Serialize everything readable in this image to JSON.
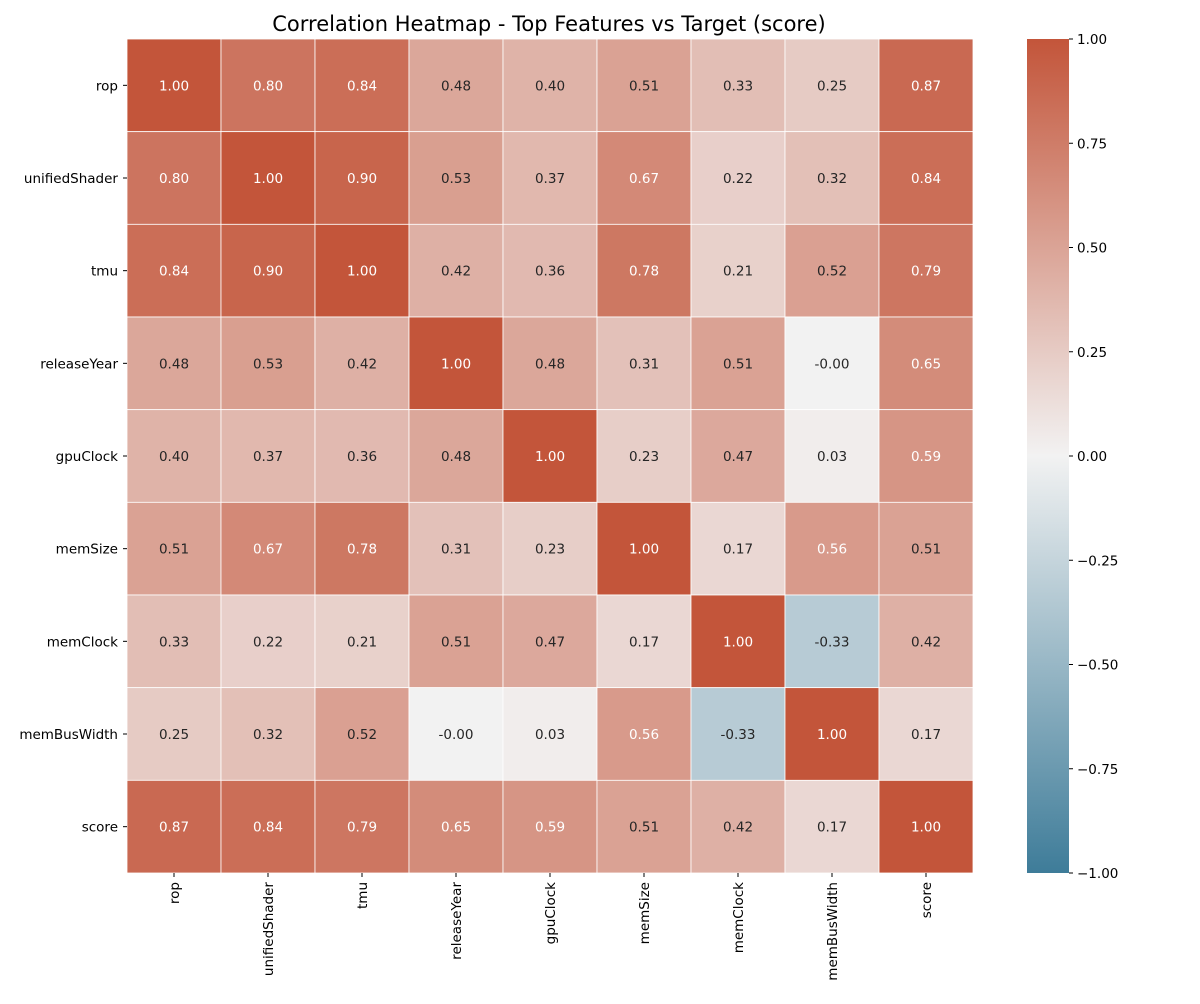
{
  "chart_data": {
    "type": "heatmap",
    "title": "Correlation Heatmap - Top Features vs Target (score)",
    "xlabel": "",
    "ylabel": "",
    "rows": [
      "rop",
      "unifiedShader",
      "tmu",
      "releaseYear",
      "gpuClock",
      "memSize",
      "memClock",
      "memBusWidth",
      "score"
    ],
    "columns": [
      "rop",
      "unifiedShader",
      "tmu",
      "releaseYear",
      "gpuClock",
      "memSize",
      "memClock",
      "memBusWidth",
      "score"
    ],
    "values": [
      [
        1.0,
        0.8,
        0.84,
        0.48,
        0.4,
        0.51,
        0.33,
        0.25,
        0.87
      ],
      [
        0.8,
        1.0,
        0.9,
        0.53,
        0.37,
        0.67,
        0.22,
        0.32,
        0.84
      ],
      [
        0.84,
        0.9,
        1.0,
        0.42,
        0.36,
        0.78,
        0.21,
        0.52,
        0.79
      ],
      [
        0.48,
        0.53,
        0.42,
        1.0,
        0.48,
        0.31,
        0.51,
        -0.0,
        0.65
      ],
      [
        0.4,
        0.37,
        0.36,
        0.48,
        1.0,
        0.23,
        0.47,
        0.03,
        0.59
      ],
      [
        0.51,
        0.67,
        0.78,
        0.31,
        0.23,
        1.0,
        0.17,
        0.56,
        0.51
      ],
      [
        0.33,
        0.22,
        0.21,
        0.51,
        0.47,
        0.17,
        1.0,
        -0.33,
        0.42
      ],
      [
        0.25,
        0.32,
        0.52,
        -0.0,
        0.03,
        0.56,
        -0.33,
        1.0,
        0.17
      ],
      [
        0.87,
        0.84,
        0.79,
        0.65,
        0.59,
        0.51,
        0.42,
        0.17,
        1.0
      ]
    ],
    "cell_labels": [
      [
        "1.00",
        "0.80",
        "0.84",
        "0.48",
        "0.40",
        "0.51",
        "0.33",
        "0.25",
        "0.87"
      ],
      [
        "0.80",
        "1.00",
        "0.90",
        "0.53",
        "0.37",
        "0.67",
        "0.22",
        "0.32",
        "0.84"
      ],
      [
        "0.84",
        "0.90",
        "1.00",
        "0.42",
        "0.36",
        "0.78",
        "0.21",
        "0.52",
        "0.79"
      ],
      [
        "0.48",
        "0.53",
        "0.42",
        "1.00",
        "0.48",
        "0.31",
        "0.51",
        "-0.00",
        "0.65"
      ],
      [
        "0.40",
        "0.37",
        "0.36",
        "0.48",
        "1.00",
        "0.23",
        "0.47",
        "0.03",
        "0.59"
      ],
      [
        "0.51",
        "0.67",
        "0.78",
        "0.31",
        "0.23",
        "1.00",
        "0.17",
        "0.56",
        "0.51"
      ],
      [
        "0.33",
        "0.22",
        "0.21",
        "0.51",
        "0.47",
        "0.17",
        "1.00",
        "-0.33",
        "0.42"
      ],
      [
        "0.25",
        "0.32",
        "0.52",
        "-0.00",
        "0.03",
        "0.56",
        "-0.33",
        "1.00",
        "0.17"
      ],
      [
        "0.87",
        "0.84",
        "0.79",
        "0.65",
        "0.59",
        "0.51",
        "0.42",
        "0.17",
        "1.00"
      ]
    ],
    "vmin": -1.0,
    "vmax": 1.0,
    "colormap": {
      "negative": "#3e7c99",
      "center": "#f2f2f2",
      "positive": "#c3553a"
    },
    "colorbar": {
      "ticks": [
        1.0,
        0.75,
        0.5,
        0.25,
        0.0,
        -0.25,
        -0.5,
        -0.75,
        -1.0
      ],
      "tick_labels": [
        "1.00",
        "0.75",
        "0.50",
        "0.25",
        "0.00",
        "−0.25",
        "−0.50",
        "−0.75",
        "−1.00"
      ]
    },
    "grid_line_color": "#ffffff",
    "annotation_text_dark": "#262626",
    "annotation_text_light": "#ffffff"
  }
}
